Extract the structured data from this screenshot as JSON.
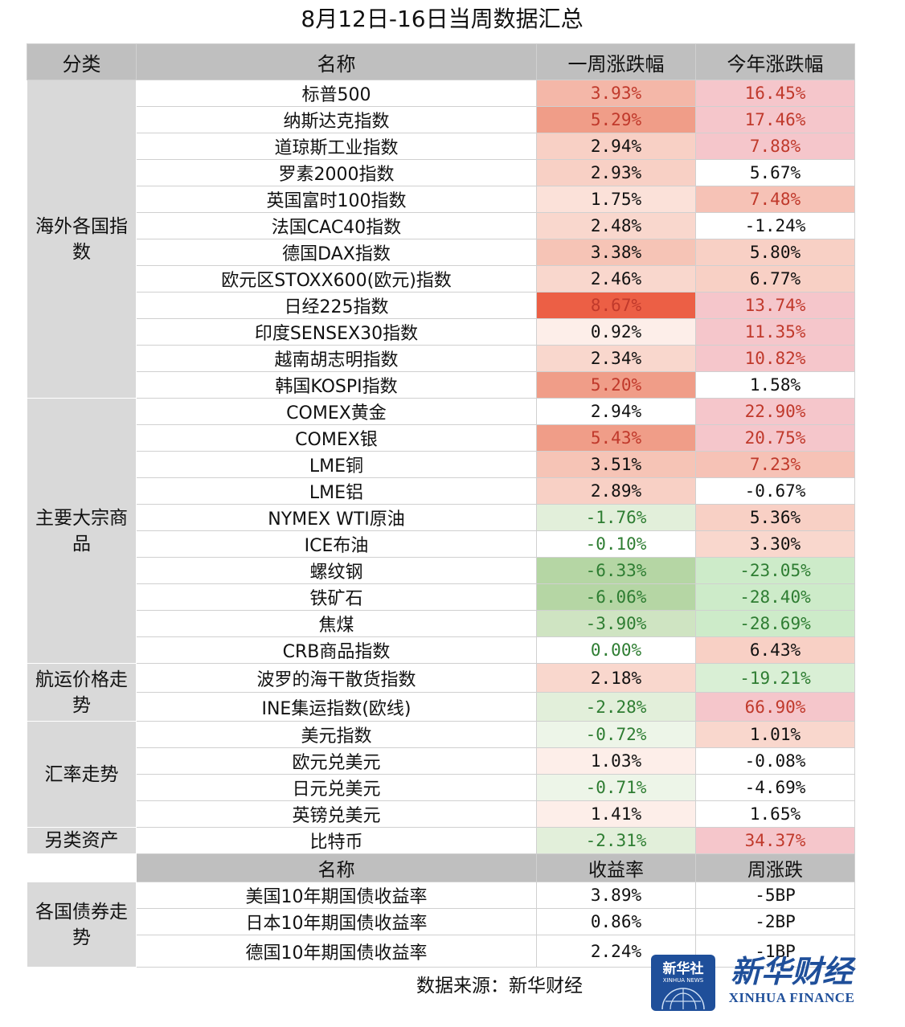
{
  "title": "8月12日-16日当周数据汇总",
  "headers": {
    "category": "分类",
    "name": "名称",
    "week": "一周涨跌幅",
    "ytd": "今年涨跌幅"
  },
  "groups": [
    {
      "category": "海外各国指数",
      "rows": [
        {
          "name": "标普500",
          "week": "3.93%",
          "ytd": "16.45%",
          "wc": "#f4b7a8",
          "wt": "#c0392b",
          "yc": "#f5c6cb",
          "yt": "#c0392b"
        },
        {
          "name": "纳斯达克指数",
          "week": "5.29%",
          "ytd": "17.46%",
          "wc": "#f09d88",
          "wt": "#c0392b",
          "yc": "#f5c6cb",
          "yt": "#c0392b"
        },
        {
          "name": "道琼斯工业指数",
          "week": "2.94%",
          "ytd": "7.88%",
          "wc": "#f8d0c5",
          "wt": "#111111",
          "yc": "#f5c6cb",
          "yt": "#c0392b"
        },
        {
          "name": "罗素2000指数",
          "week": "2.93%",
          "ytd": "5.67%",
          "wc": "#f8d0c5",
          "wt": "#111111",
          "yc": "#ffffff",
          "yt": "#111111"
        },
        {
          "name": "英国富时100指数",
          "week": "1.75%",
          "ytd": "7.48%",
          "wc": "#fbe1d9",
          "wt": "#111111",
          "yc": "#f6c2b6",
          "yt": "#c0392b"
        },
        {
          "name": "法国CAC40指数",
          "week": "2.48%",
          "ytd": "-1.24%",
          "wc": "#f9d7cd",
          "wt": "#111111",
          "yc": "#ffffff",
          "yt": "#111111"
        },
        {
          "name": "德国DAX指数",
          "week": "3.38%",
          "ytd": "5.80%",
          "wc": "#f6c4b6",
          "wt": "#111111",
          "yc": "#f8d0c5",
          "yt": "#111111"
        },
        {
          "name": "欧元区STOXX600(欧元)指数",
          "week": "2.46%",
          "ytd": "6.77%",
          "wc": "#f9d7cd",
          "wt": "#111111",
          "yc": "#f8d0c5",
          "yt": "#111111"
        },
        {
          "name": "日经225指数",
          "week": "8.67%",
          "ytd": "13.74%",
          "wc": "#ec5f45",
          "wt": "#c0392b",
          "yc": "#f5c6cb",
          "yt": "#c0392b"
        },
        {
          "name": "印度SENSEX30指数",
          "week": "0.92%",
          "ytd": "11.35%",
          "wc": "#fdeee9",
          "wt": "#111111",
          "yc": "#f5c6cb",
          "yt": "#c0392b"
        },
        {
          "name": "越南胡志明指数",
          "week": "2.34%",
          "ytd": "10.82%",
          "wc": "#f9d7cd",
          "wt": "#111111",
          "yc": "#f5c6cb",
          "yt": "#c0392b"
        },
        {
          "name": "韩国KOSPI指数",
          "week": "5.20%",
          "ytd": "1.58%",
          "wc": "#f09d88",
          "wt": "#c0392b",
          "yc": "#ffffff",
          "yt": "#111111"
        }
      ]
    },
    {
      "category": "主要大宗商品",
      "rows": [
        {
          "name": "COMEX黄金",
          "week": "2.94%",
          "ytd": "22.90%",
          "wc": "#ffffff",
          "wt": "#111111",
          "yc": "#f5c6cb",
          "yt": "#c0392b"
        },
        {
          "name": "COMEX银",
          "week": "5.43%",
          "ytd": "20.75%",
          "wc": "#f09d88",
          "wt": "#c0392b",
          "yc": "#f5c6cb",
          "yt": "#c0392b"
        },
        {
          "name": "LME铜",
          "week": "3.51%",
          "ytd": "7.23%",
          "wc": "#f6c4b6",
          "wt": "#111111",
          "yc": "#f6c2b6",
          "yt": "#c0392b"
        },
        {
          "name": "LME铝",
          "week": "2.89%",
          "ytd": "-0.67%",
          "wc": "#f8d0c5",
          "wt": "#111111",
          "yc": "#ffffff",
          "yt": "#111111"
        },
        {
          "name": "NYMEX WTI原油",
          "week": "-1.76%",
          "ytd": "5.36%",
          "wc": "#e2efda",
          "wt": "#2e7d32",
          "yc": "#f8d0c5",
          "yt": "#111111"
        },
        {
          "name": "ICE布油",
          "week": "-0.10%",
          "ytd": "3.30%",
          "wc": "#ffffff",
          "wt": "#2e7d32",
          "yc": "#f9d7cd",
          "yt": "#111111"
        },
        {
          "name": "螺纹钢",
          "week": "-6.33%",
          "ytd": "-23.05%",
          "wc": "#b5d6a4",
          "wt": "#2e7d32",
          "yc": "#cdebc9",
          "yt": "#2e7d32"
        },
        {
          "name": "铁矿石",
          "week": "-6.06%",
          "ytd": "-28.40%",
          "wc": "#b5d6a4",
          "wt": "#2e7d32",
          "yc": "#cdebc9",
          "yt": "#2e7d32"
        },
        {
          "name": "焦煤",
          "week": "-3.90%",
          "ytd": "-28.69%",
          "wc": "#cfe4c2",
          "wt": "#2e7d32",
          "yc": "#cdebc9",
          "yt": "#2e7d32"
        },
        {
          "name": "CRB商品指数",
          "week": "0.00%",
          "ytd": "6.43%",
          "wc": "#ffffff",
          "wt": "#2e7d32",
          "yc": "#f8d0c5",
          "yt": "#111111"
        }
      ]
    },
    {
      "category": "航运价格走势",
      "rows": [
        {
          "name": "波罗的海干散货指数",
          "week": "2.18%",
          "ytd": "-19.21%",
          "wc": "#f9d7cd",
          "wt": "#111111",
          "yc": "#d9efd5",
          "yt": "#2e7d32",
          "h": 36
        },
        {
          "name": "INE集运指数(欧线)",
          "week": "-2.28%",
          "ytd": "66.90%",
          "wc": "#e2efda",
          "wt": "#2e7d32",
          "yc": "#f5c6cb",
          "yt": "#c0392b",
          "h": 36
        }
      ]
    },
    {
      "category": "汇率走势",
      "rows": [
        {
          "name": "美元指数",
          "week": "-0.72%",
          "ytd": "1.01%",
          "wc": "#edf5e8",
          "wt": "#2e7d32",
          "yc": "#f9d7cd",
          "yt": "#111111"
        },
        {
          "name": "欧元兑美元",
          "week": "1.03%",
          "ytd": "-0.08%",
          "wc": "#fdeee9",
          "wt": "#111111",
          "yc": "#ffffff",
          "yt": "#111111"
        },
        {
          "name": "日元兑美元",
          "week": "-0.71%",
          "ytd": "-4.69%",
          "wc": "#edf5e8",
          "wt": "#2e7d32",
          "yc": "#ffffff",
          "yt": "#111111"
        },
        {
          "name": "英镑兑美元",
          "week": "1.41%",
          "ytd": "1.65%",
          "wc": "#fdeee9",
          "wt": "#111111",
          "yc": "#ffffff",
          "yt": "#111111"
        }
      ]
    },
    {
      "category": "另类资产",
      "rows": [
        {
          "name": "比特币",
          "week": "-2.31%",
          "ytd": "34.37%",
          "wc": "#e2efda",
          "wt": "#2e7d32",
          "yc": "#f5c6cb",
          "yt": "#c0392b"
        }
      ]
    }
  ],
  "bonds": {
    "headers": {
      "name": "名称",
      "yield": "收益率",
      "change": "周涨跌"
    },
    "category": "各国债券走势",
    "rows": [
      {
        "name": "美国10年期国债收益率",
        "yield": "3.89%",
        "change": "-5BP"
      },
      {
        "name": "日本10年期国债收益率",
        "yield": "0.86%",
        "change": "-2BP"
      },
      {
        "name": "德国10年期国债收益率",
        "yield": "2.24%",
        "change": "-1BP",
        "h": 40
      }
    ]
  },
  "source": "数据来源：新华财经",
  "logo": {
    "badge_cn": "新华社",
    "badge_en": "XINHUA NEWS",
    "brand_cn": "新华财经",
    "brand_en": "XINHUA FINANCE"
  }
}
